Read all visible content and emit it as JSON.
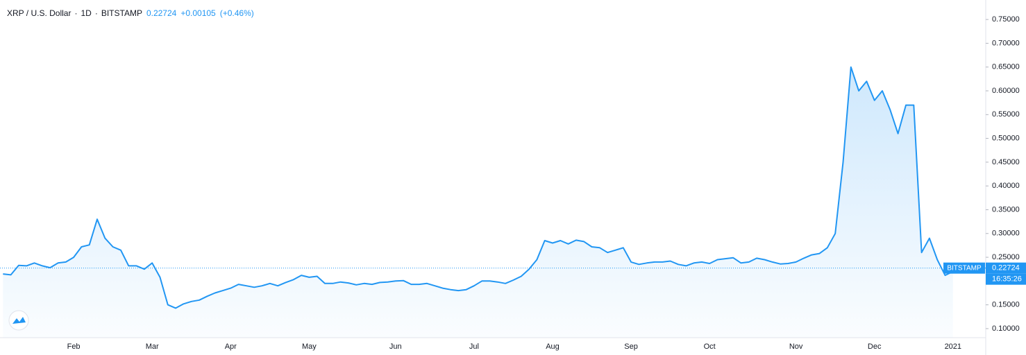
{
  "chart_data": {
    "type": "line",
    "symbol": "XRP / U.S. Dollar",
    "interval": "1D",
    "exchange": "BITSTAMP",
    "last_price": 0.22724,
    "change": "+0.00105",
    "change_pct": "(+0.46%)",
    "countdown": "16:35:26",
    "categories": [
      null,
      null,
      null,
      null,
      null,
      null,
      null,
      null,
      null,
      "Feb",
      null,
      null,
      null,
      null,
      null,
      null,
      null,
      null,
      null,
      "Mar",
      null,
      null,
      null,
      null,
      null,
      null,
      null,
      null,
      null,
      "Apr",
      null,
      null,
      null,
      null,
      null,
      null,
      null,
      null,
      null,
      "May",
      null,
      null,
      null,
      null,
      null,
      null,
      null,
      null,
      null,
      null,
      "Jun",
      null,
      null,
      null,
      null,
      null,
      null,
      null,
      null,
      null,
      "Jul",
      null,
      null,
      null,
      null,
      null,
      null,
      null,
      null,
      null,
      "Aug",
      null,
      null,
      null,
      null,
      null,
      null,
      null,
      null,
      null,
      "Sep",
      null,
      null,
      null,
      null,
      null,
      null,
      null,
      null,
      null,
      "Oct",
      null,
      null,
      null,
      null,
      null,
      null,
      null,
      null,
      null,
      null,
      "Nov",
      null,
      null,
      null,
      null,
      null,
      null,
      null,
      null,
      null,
      "Dec",
      null,
      null,
      null,
      null,
      null,
      null,
      null,
      null,
      null,
      "2021"
    ],
    "series": [
      {
        "color": "#2196f3",
        "values": [
          0.215,
          0.213,
          0.233,
          0.232,
          0.238,
          0.232,
          0.228,
          0.238,
          0.24,
          0.25,
          0.272,
          0.276,
          0.33,
          0.29,
          0.272,
          0.265,
          0.232,
          0.232,
          0.225,
          0.238,
          0.208,
          0.15,
          0.143,
          0.152,
          0.157,
          0.16,
          0.168,
          0.175,
          0.18,
          0.185,
          0.193,
          0.19,
          0.187,
          0.19,
          0.195,
          0.19,
          0.197,
          0.203,
          0.212,
          0.208,
          0.21,
          0.195,
          0.195,
          0.198,
          0.196,
          0.192,
          0.195,
          0.193,
          0.197,
          0.198,
          0.2,
          0.201,
          0.193,
          0.193,
          0.195,
          0.19,
          0.185,
          0.182,
          0.18,
          0.182,
          0.19,
          0.2,
          0.2,
          0.198,
          0.195,
          0.202,
          0.21,
          0.225,
          0.245,
          0.285,
          0.28,
          0.285,
          0.278,
          0.286,
          0.283,
          0.272,
          0.27,
          0.26,
          0.265,
          0.27,
          0.24,
          0.235,
          0.238,
          0.24,
          0.24,
          0.242,
          0.235,
          0.232,
          0.238,
          0.24,
          0.237,
          0.245,
          0.247,
          0.249,
          0.238,
          0.24,
          0.248,
          0.245,
          0.24,
          0.236,
          0.237,
          0.24,
          0.248,
          0.255,
          0.258,
          0.27,
          0.3,
          0.45,
          0.65,
          0.6,
          0.62,
          0.58,
          0.6,
          0.56,
          0.51,
          0.57,
          0.57,
          0.26,
          0.29,
          0.245,
          0.212,
          0.22
        ]
      }
    ],
    "ylim": [
      0.0445,
      0.791
    ],
    "yticks": [
      {
        "value": 0.1,
        "label": "0.10000"
      },
      {
        "value": 0.15,
        "label": "0.15000"
      },
      {
        "value": 0.2,
        "label": "0.20000"
      },
      {
        "value": 0.25,
        "label": "0.25000"
      },
      {
        "value": 0.3,
        "label": "0.30000"
      },
      {
        "value": 0.35,
        "label": "0.35000"
      },
      {
        "value": 0.4,
        "label": "0.40000"
      },
      {
        "value": 0.45,
        "label": "0.45000"
      },
      {
        "value": 0.5,
        "label": "0.50000"
      },
      {
        "value": 0.55,
        "label": "0.55000"
      },
      {
        "value": 0.6,
        "label": "0.60000"
      },
      {
        "value": 0.65,
        "label": "0.65000"
      },
      {
        "value": 0.7,
        "label": "0.70000"
      },
      {
        "value": 0.75,
        "label": "0.75000"
      }
    ],
    "grid": false
  }
}
